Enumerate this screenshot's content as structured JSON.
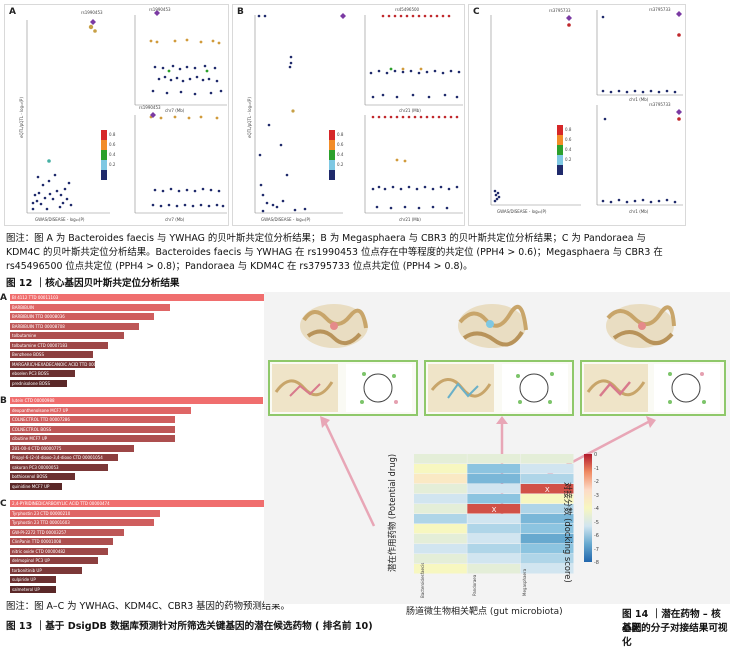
{
  "fig12": {
    "panels": [
      "A",
      "B",
      "C"
    ],
    "axis": {
      "eqtl": "eQTL/pQTL - log₁₀(P)",
      "gwas": "GWAS/DISEASE - log₁₀(P)",
      "gwas_dis": "GWAS/DISEASE - log₁₀(P)",
      "chr7": "chr7 (Mb)",
      "chr21": "chr21 (Mb)",
      "chr1": "chr1 (Mb)"
    },
    "snps": {
      "a": "rs1990453",
      "b": "rs45496500",
      "c": "rs3795733"
    },
    "legend_ticks": [
      "0.8",
      "0.6",
      "0.4",
      "0.2"
    ],
    "caption_line1": "图注：图 A 为 Bacteroides faecis 与 YWHAG 的贝叶斯共定位分析结果；B 为 Megasphaera 与 CBR3 的贝叶斯共定位分析结果；C 为 Pandoraea 与",
    "caption_line2": "KDM4C 的贝叶斯共定位分析结果。Bacteroides faecis 与 YWHAG 在 rs1990453 位点存在中等程度的共定位 (PPH4 > 0.6)；Megasphaera 与 CBR3 在",
    "caption_line3": "rs45496500 位点共定位 (PPH4 > 0.8)；Pandoraea 与 KDM4C 在 rs3795733 位点共定位 (PPH4 > 0.8)。",
    "title": "图 12 ｜核心基因贝叶斯共定位分析结果"
  },
  "fig13": {
    "groups": [
      {
        "label": "A",
        "bars": [
          {
            "name": "BI 4112 TTD 00011103",
            "value": 1.0
          },
          {
            "name": "BARBIBUIN",
            "value": 0.62
          },
          {
            "name": "BARBIBUIN TTD 00008036",
            "value": 0.56
          },
          {
            "name": "BARBIBUIN TTD 00008708",
            "value": 0.5
          },
          {
            "name": "tolbutamine",
            "value": 0.44
          },
          {
            "name": "tolbutamine CTD 00007183",
            "value": 0.38
          },
          {
            "name": "Benzhene BOSS",
            "value": 0.32
          },
          {
            "name": "MARGARIC/HEXADECANOIC ACID TTD 00009719",
            "value": 0.33
          },
          {
            "name": "ebselen PC3 BOSS",
            "value": 0.25
          },
          {
            "name": "prednisolone BOSS",
            "value": 0.22
          }
        ]
      },
      {
        "label": "B",
        "bars": [
          {
            "name": "lutein CTD 00000988",
            "value": 0.98
          },
          {
            "name": "dexpanthenolsone MCF7 UP",
            "value": 0.7
          },
          {
            "name": "COLNECTROL TTD 00007286",
            "value": 0.64
          },
          {
            "name": "COLNECTROL BOSS",
            "value": 0.64
          },
          {
            "name": "cibutine MCF7 UP",
            "value": 0.64
          },
          {
            "name": "281-00-4 CTD 00000775",
            "value": 0.48
          },
          {
            "name": "Propyl-6-(2-(4-dioxo-3,4-dioxo CTD 00001054",
            "value": 0.42
          },
          {
            "name": "sakuran PC3 00000053",
            "value": 0.38
          },
          {
            "name": "bothiosenol BOSS",
            "value": 0.25
          },
          {
            "name": "quinidine MCF7 UP",
            "value": 0.2
          }
        ]
      },
      {
        "label": "C",
        "bars": [
          {
            "name": "2,4-PYRIDINEDICARBOXYLIC ACID TTD 00000474",
            "value": 1.0
          },
          {
            "name": "Tyrphostin 23 CTD 00000210",
            "value": 0.58
          },
          {
            "name": "Tyrphostin 23 TTD 00001603",
            "value": 0.56
          },
          {
            "name": "GW-PI-2272 TTD 00003257",
            "value": 0.44
          },
          {
            "name": "ClinPanin TTD 00001008",
            "value": 0.4
          },
          {
            "name": "nitric oxide CTD 00000482",
            "value": 0.38
          },
          {
            "name": "delmopinol PC3 UP",
            "value": 0.34
          },
          {
            "name": "torbonitinib UP",
            "value": 0.28
          },
          {
            "name": "sulpiride UP",
            "value": 0.18
          },
          {
            "name": "salmeterol UP",
            "value": 0.18
          }
        ]
      }
    ],
    "caption": "图注：图 A–C 为 YWHAG、KDM4C、CBR3 基因的药物预测结果。",
    "title": "图 13 ｜基于 DsigDB 数据库预测针对所筛选关键基因的潜在候选药物 ( 排名前 10)"
  },
  "fig14": {
    "heatmap": {
      "columns": [
        "Bacteroidesfaecis",
        "Pandoraea",
        "Megasphaera"
      ],
      "ylabel": "潜在作用药物 (Potential drug)",
      "xlabel": "肠道微生物相关靶点 (gut microbiota)",
      "scale_label": "对接分数 (docking score)",
      "scale_ticks": [
        "0",
        "-1",
        "-2",
        "-3",
        "-4",
        "-5",
        "-6",
        "-7",
        "-8"
      ],
      "values": [
        [
          -3.5,
          -3.5,
          -3.5
        ],
        [
          -3.0,
          -5.0,
          -4.0
        ],
        [
          -2.5,
          -5.5,
          -4.5
        ],
        [
          -3.5,
          -4.0,
          -0.5
        ],
        [
          -4.0,
          -5.0,
          -3.0
        ],
        [
          -3.5,
          -0.5,
          -4.5
        ],
        [
          -4.5,
          -4.0,
          -5.5
        ],
        [
          -3.0,
          -4.5,
          -5.0
        ],
        [
          -3.5,
          -4.0,
          -6.0
        ],
        [
          -4.0,
          -4.5,
          -5.0
        ],
        [
          -3.5,
          -4.0,
          -4.5
        ],
        [
          -3.0,
          -3.5,
          -4.0
        ]
      ],
      "marks": [
        [
          "",
          "",
          ""
        ],
        [
          "",
          "",
          ""
        ],
        [
          "",
          "",
          ""
        ],
        [
          "",
          "",
          "X"
        ],
        [
          "",
          "",
          ""
        ],
        [
          "",
          "X",
          ""
        ],
        [
          "",
          "",
          ""
        ],
        [
          "",
          "",
          ""
        ],
        [
          "",
          "",
          ""
        ],
        [
          "",
          "",
          ""
        ],
        [
          "",
          "",
          ""
        ],
        [
          "",
          "",
          ""
        ]
      ]
    },
    "title_line1": "图 14 ｜潜在药物 – 核心靶",
    "title_line2": "基因的分子对接结果可视化"
  }
}
